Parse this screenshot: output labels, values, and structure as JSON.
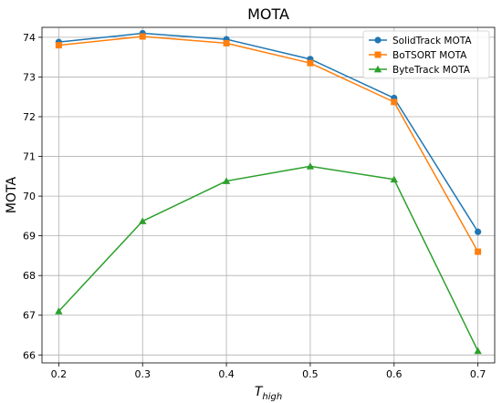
{
  "chart_data": {
    "type": "line",
    "title": "MOTA",
    "xlabel": {
      "main": "T",
      "sub": "high"
    },
    "ylabel": "MOTA",
    "x": [
      0.2,
      0.3,
      0.4,
      0.5,
      0.6,
      0.7
    ],
    "x_ticks": [
      "0.2",
      "0.3",
      "0.4",
      "0.5",
      "0.6",
      "0.7"
    ],
    "y_ticks": [
      "66",
      "67",
      "68",
      "69",
      "70",
      "71",
      "72",
      "73",
      "74"
    ],
    "xlim": [
      0.18,
      0.72
    ],
    "ylim": [
      65.8,
      74.25
    ],
    "grid": true,
    "legend_position": "top-right",
    "series": [
      {
        "name": "SolidTrack MOTA",
        "color": "#1f77b4",
        "marker": "circle",
        "values": [
          73.88,
          74.1,
          73.95,
          73.45,
          72.47,
          69.1
        ]
      },
      {
        "name": "BoTSORT MOTA",
        "color": "#ff7f0e",
        "marker": "square",
        "values": [
          73.8,
          74.02,
          73.85,
          73.35,
          72.37,
          68.6
        ]
      },
      {
        "name": "ByteTrack MOTA",
        "color": "#2ca02c",
        "marker": "triangle",
        "values": [
          67.1,
          69.37,
          70.38,
          70.75,
          70.42,
          66.1
        ]
      }
    ]
  }
}
